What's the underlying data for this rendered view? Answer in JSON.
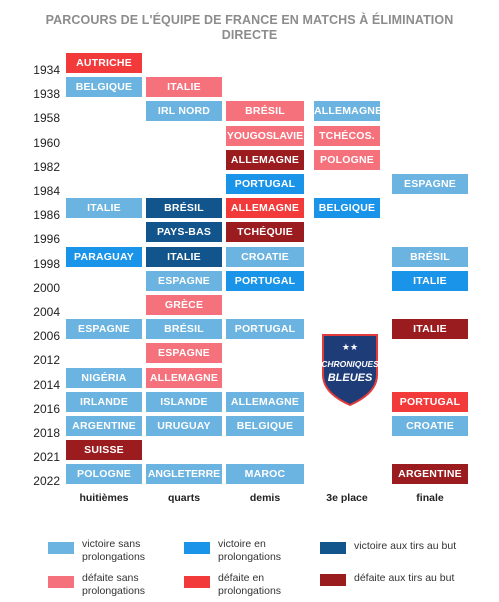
{
  "chart_data": {
    "type": "table",
    "title_lines": [
      "PARCOURS DE L'ÉQUIPE DE FRANCE EN MATCHS À ÉLIMINATION",
      "DIRECTE"
    ],
    "columns": [
      "huitièmes",
      "quarts",
      "demis",
      "3e place",
      "finale"
    ],
    "categories": {
      "v": {
        "label": "victoire sans prolongations",
        "color": "#6bb3e0"
      },
      "vp": {
        "label": "victoire en prolongations",
        "color": "#1a94e8"
      },
      "vt": {
        "label": "victoire aux tirs au but",
        "color": "#12548c"
      },
      "d": {
        "label": "défaite sans prolongations",
        "color": "#f5717c"
      },
      "dp": {
        "label": "défaite en prolongations",
        "color": "#f23a3a"
      },
      "dt": {
        "label": "défaite aux tirs au but",
        "color": "#9b1c1f"
      }
    },
    "rows": [
      {
        "year": "1934",
        "cells": [
          [
            "AUTRICHE",
            "dp"
          ],
          null,
          null,
          null,
          null
        ]
      },
      {
        "year": "1938",
        "cells": [
          [
            "BELGIQUE",
            "v"
          ],
          [
            "ITALIE",
            "d"
          ],
          null,
          null,
          null
        ]
      },
      {
        "year": "1958",
        "cells": [
          null,
          [
            "IRL NORD",
            "v"
          ],
          [
            "BRÉSIL",
            "d"
          ],
          [
            "ALLEMAGNE",
            "v"
          ],
          null
        ]
      },
      {
        "year": "1960",
        "cells": [
          null,
          null,
          [
            "YOUGOSLAVIE",
            "d"
          ],
          [
            "TCHÉCOS.",
            "d"
          ],
          null
        ]
      },
      {
        "year": "1982",
        "cells": [
          null,
          null,
          [
            "ALLEMAGNE",
            "dt"
          ],
          [
            "POLOGNE",
            "d"
          ],
          null
        ]
      },
      {
        "year": "1984",
        "cells": [
          null,
          null,
          [
            "PORTUGAL",
            "vp"
          ],
          null,
          [
            "ESPAGNE",
            "v"
          ]
        ]
      },
      {
        "year": "1986",
        "cells": [
          [
            "ITALIE",
            "v"
          ],
          [
            "BRÉSIL",
            "vt"
          ],
          [
            "ALLEMAGNE",
            "dp"
          ],
          [
            "BELGIQUE",
            "vp"
          ],
          null
        ]
      },
      {
        "year": "1996",
        "cells": [
          null,
          [
            "PAYS-BAS",
            "vt"
          ],
          [
            "TCHÉQUIE",
            "dt"
          ],
          null,
          null
        ]
      },
      {
        "year": "1998",
        "cells": [
          [
            "PARAGUAY",
            "vp"
          ],
          [
            "ITALIE",
            "vt"
          ],
          [
            "CROATIE",
            "v"
          ],
          null,
          [
            "BRÉSIL",
            "v"
          ]
        ]
      },
      {
        "year": "2000",
        "cells": [
          null,
          [
            "ESPAGNE",
            "v"
          ],
          [
            "PORTUGAL",
            "vp"
          ],
          null,
          [
            "ITALIE",
            "vp"
          ]
        ]
      },
      {
        "year": "2004",
        "cells": [
          null,
          [
            "GRÈCE",
            "d"
          ],
          null,
          null,
          null
        ]
      },
      {
        "year": "2006",
        "cells": [
          [
            "ESPAGNE",
            "v"
          ],
          [
            "BRÉSIL",
            "v"
          ],
          [
            "PORTUGAL",
            "v"
          ],
          null,
          [
            "ITALIE",
            "dt"
          ]
        ]
      },
      {
        "year": "2012",
        "cells": [
          null,
          [
            "ESPAGNE",
            "d"
          ],
          null,
          null,
          null
        ]
      },
      {
        "year": "2014",
        "cells": [
          [
            "NIGÉRIA",
            "v"
          ],
          [
            "ALLEMAGNE",
            "d"
          ],
          null,
          null,
          null
        ]
      },
      {
        "year": "2016",
        "cells": [
          [
            "IRLANDE",
            "v"
          ],
          [
            "ISLANDE",
            "v"
          ],
          [
            "ALLEMAGNE",
            "v"
          ],
          null,
          [
            "PORTUGAL",
            "dp"
          ]
        ]
      },
      {
        "year": "2018",
        "cells": [
          [
            "ARGENTINE",
            "v"
          ],
          [
            "URUGUAY",
            "v"
          ],
          [
            "BELGIQUE",
            "v"
          ],
          null,
          [
            "CROATIE",
            "v"
          ]
        ]
      },
      {
        "year": "2021",
        "cells": [
          [
            "SUISSE",
            "dt"
          ],
          null,
          null,
          null,
          null
        ]
      },
      {
        "year": "2022",
        "cells": [
          [
            "POLOGNE",
            "v"
          ],
          [
            "ANGLETERRE",
            "v"
          ],
          [
            "MAROC",
            "v"
          ],
          null,
          [
            "ARGENTINE",
            "dt"
          ]
        ]
      }
    ],
    "legend_order": [
      "v",
      "vp",
      "vt",
      "d",
      "dp",
      "dt"
    ],
    "legend_lines": {
      "v": [
        "victoire sans",
        "prolongations"
      ],
      "vp": [
        "victoire en",
        "prolongations"
      ],
      "vt": [
        "victoire aux tirs au but"
      ],
      "d": [
        "défaite sans",
        "prolongations"
      ],
      "dp": [
        "défaite en",
        "prolongations"
      ],
      "dt": [
        "défaite aux tirs au but"
      ]
    }
  },
  "logo": {
    "line1": "CHRONIQUES",
    "line2": "BLEUES",
    "stars": "★★"
  }
}
